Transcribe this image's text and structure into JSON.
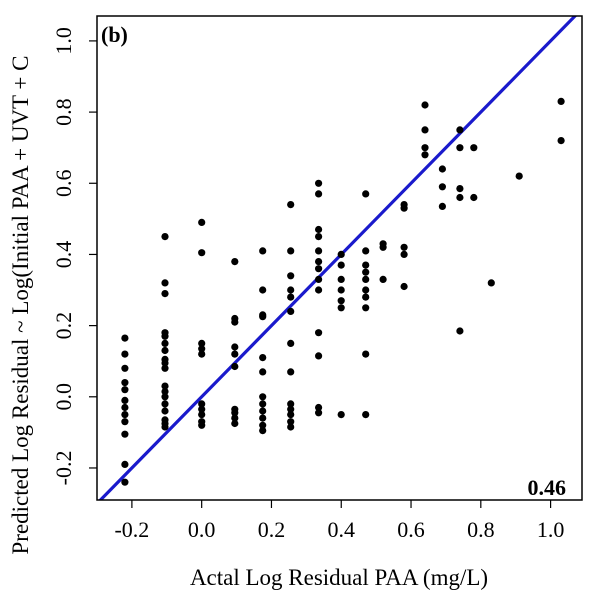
{
  "chart_data": {
    "type": "scatter",
    "panel_label": "(b)",
    "xlabel": "Actal Log Residual PAA (mg/L)",
    "ylabel": "Predicted Log Residual ~ Log(Initial PAA + UVT + C",
    "xlim": [
      -0.3,
      1.09
    ],
    "ylim": [
      -0.29,
      1.07
    ],
    "xticks": [
      "-0.2",
      "0.0",
      "0.2",
      "0.4",
      "0.6",
      "0.8",
      "1.0"
    ],
    "yticks": [
      "-0.2",
      "0.0",
      "0.2",
      "0.4",
      "0.6",
      "0.8",
      "1.0"
    ],
    "grid": false,
    "annotation": "0.46",
    "colors": {
      "points": "#000000",
      "line": "#1a1acc"
    },
    "reference_line": {
      "x": [
        -0.3,
        1.09
      ],
      "y": [
        -0.3,
        1.09
      ]
    },
    "points": [
      [
        -0.22,
        0.165
      ],
      [
        -0.22,
        0.12
      ],
      [
        -0.22,
        0.08
      ],
      [
        -0.22,
        0.04
      ],
      [
        -0.22,
        0.02
      ],
      [
        -0.22,
        -0.01
      ],
      [
        -0.22,
        -0.03
      ],
      [
        -0.22,
        -0.05
      ],
      [
        -0.22,
        -0.07
      ],
      [
        -0.22,
        -0.105
      ],
      [
        -0.22,
        -0.19
      ],
      [
        -0.22,
        -0.24
      ],
      [
        -0.105,
        0.45
      ],
      [
        -0.105,
        0.32
      ],
      [
        -0.105,
        0.29
      ],
      [
        -0.105,
        0.18
      ],
      [
        -0.105,
        0.17
      ],
      [
        -0.105,
        0.15
      ],
      [
        -0.105,
        0.13
      ],
      [
        -0.105,
        0.105
      ],
      [
        -0.105,
        0.095
      ],
      [
        -0.105,
        0.08
      ],
      [
        -0.105,
        0.03
      ],
      [
        -0.105,
        0.015
      ],
      [
        -0.105,
        0.0
      ],
      [
        -0.105,
        -0.02
      ],
      [
        -0.105,
        -0.04
      ],
      [
        -0.105,
        -0.065
      ],
      [
        -0.105,
        -0.075
      ],
      [
        -0.105,
        -0.085
      ],
      [
        0.0,
        0.49
      ],
      [
        0.0,
        0.405
      ],
      [
        0.0,
        0.15
      ],
      [
        0.0,
        0.135
      ],
      [
        0.0,
        0.12
      ],
      [
        0.0,
        -0.02
      ],
      [
        0.0,
        -0.035
      ],
      [
        0.0,
        -0.05
      ],
      [
        0.0,
        -0.07
      ],
      [
        0.0,
        -0.08
      ],
      [
        0.095,
        0.38
      ],
      [
        0.095,
        0.22
      ],
      [
        0.095,
        0.21
      ],
      [
        0.095,
        0.14
      ],
      [
        0.095,
        0.12
      ],
      [
        0.095,
        0.085
      ],
      [
        0.095,
        -0.035
      ],
      [
        0.095,
        -0.045
      ],
      [
        0.095,
        -0.06
      ],
      [
        0.095,
        -0.075
      ],
      [
        0.175,
        0.41
      ],
      [
        0.175,
        0.3
      ],
      [
        0.175,
        0.23
      ],
      [
        0.175,
        0.225
      ],
      [
        0.175,
        0.11
      ],
      [
        0.175,
        0.07
      ],
      [
        0.175,
        0.0
      ],
      [
        0.175,
        -0.02
      ],
      [
        0.175,
        -0.04
      ],
      [
        0.175,
        -0.06
      ],
      [
        0.175,
        -0.08
      ],
      [
        0.175,
        -0.095
      ],
      [
        0.255,
        0.54
      ],
      [
        0.255,
        0.41
      ],
      [
        0.255,
        0.34
      ],
      [
        0.255,
        0.3
      ],
      [
        0.255,
        0.28
      ],
      [
        0.255,
        0.24
      ],
      [
        0.255,
        0.15
      ],
      [
        0.255,
        0.07
      ],
      [
        0.255,
        -0.02
      ],
      [
        0.255,
        -0.035
      ],
      [
        0.255,
        -0.05
      ],
      [
        0.255,
        -0.07
      ],
      [
        0.255,
        -0.085
      ],
      [
        0.335,
        0.6
      ],
      [
        0.335,
        0.57
      ],
      [
        0.335,
        0.47
      ],
      [
        0.335,
        0.45
      ],
      [
        0.335,
        0.41
      ],
      [
        0.335,
        0.38
      ],
      [
        0.335,
        0.36
      ],
      [
        0.335,
        0.33
      ],
      [
        0.335,
        0.3
      ],
      [
        0.335,
        0.18
      ],
      [
        0.335,
        0.115
      ],
      [
        0.335,
        -0.03
      ],
      [
        0.335,
        -0.045
      ],
      [
        0.4,
        0.4
      ],
      [
        0.4,
        0.37
      ],
      [
        0.4,
        0.33
      ],
      [
        0.4,
        0.3
      ],
      [
        0.4,
        0.27
      ],
      [
        0.4,
        0.25
      ],
      [
        0.4,
        -0.05
      ],
      [
        0.47,
        0.57
      ],
      [
        0.47,
        0.41
      ],
      [
        0.47,
        0.37
      ],
      [
        0.47,
        0.35
      ],
      [
        0.47,
        0.33
      ],
      [
        0.47,
        0.3
      ],
      [
        0.47,
        0.28
      ],
      [
        0.47,
        0.25
      ],
      [
        0.47,
        0.12
      ],
      [
        0.47,
        -0.05
      ],
      [
        0.52,
        0.43
      ],
      [
        0.52,
        0.42
      ],
      [
        0.52,
        0.33
      ],
      [
        0.58,
        0.54
      ],
      [
        0.58,
        0.53
      ],
      [
        0.58,
        0.42
      ],
      [
        0.58,
        0.4
      ],
      [
        0.58,
        0.31
      ],
      [
        0.64,
        0.82
      ],
      [
        0.64,
        0.75
      ],
      [
        0.64,
        0.7
      ],
      [
        0.64,
        0.68
      ],
      [
        0.69,
        0.64
      ],
      [
        0.69,
        0.59
      ],
      [
        0.69,
        0.535
      ],
      [
        0.74,
        0.75
      ],
      [
        0.74,
        0.7
      ],
      [
        0.74,
        0.585
      ],
      [
        0.74,
        0.56
      ],
      [
        0.74,
        0.185
      ],
      [
        0.78,
        0.7
      ],
      [
        0.78,
        0.56
      ],
      [
        0.83,
        0.32
      ],
      [
        0.91,
        0.62
      ],
      [
        1.03,
        0.83
      ],
      [
        1.03,
        0.72
      ]
    ]
  }
}
